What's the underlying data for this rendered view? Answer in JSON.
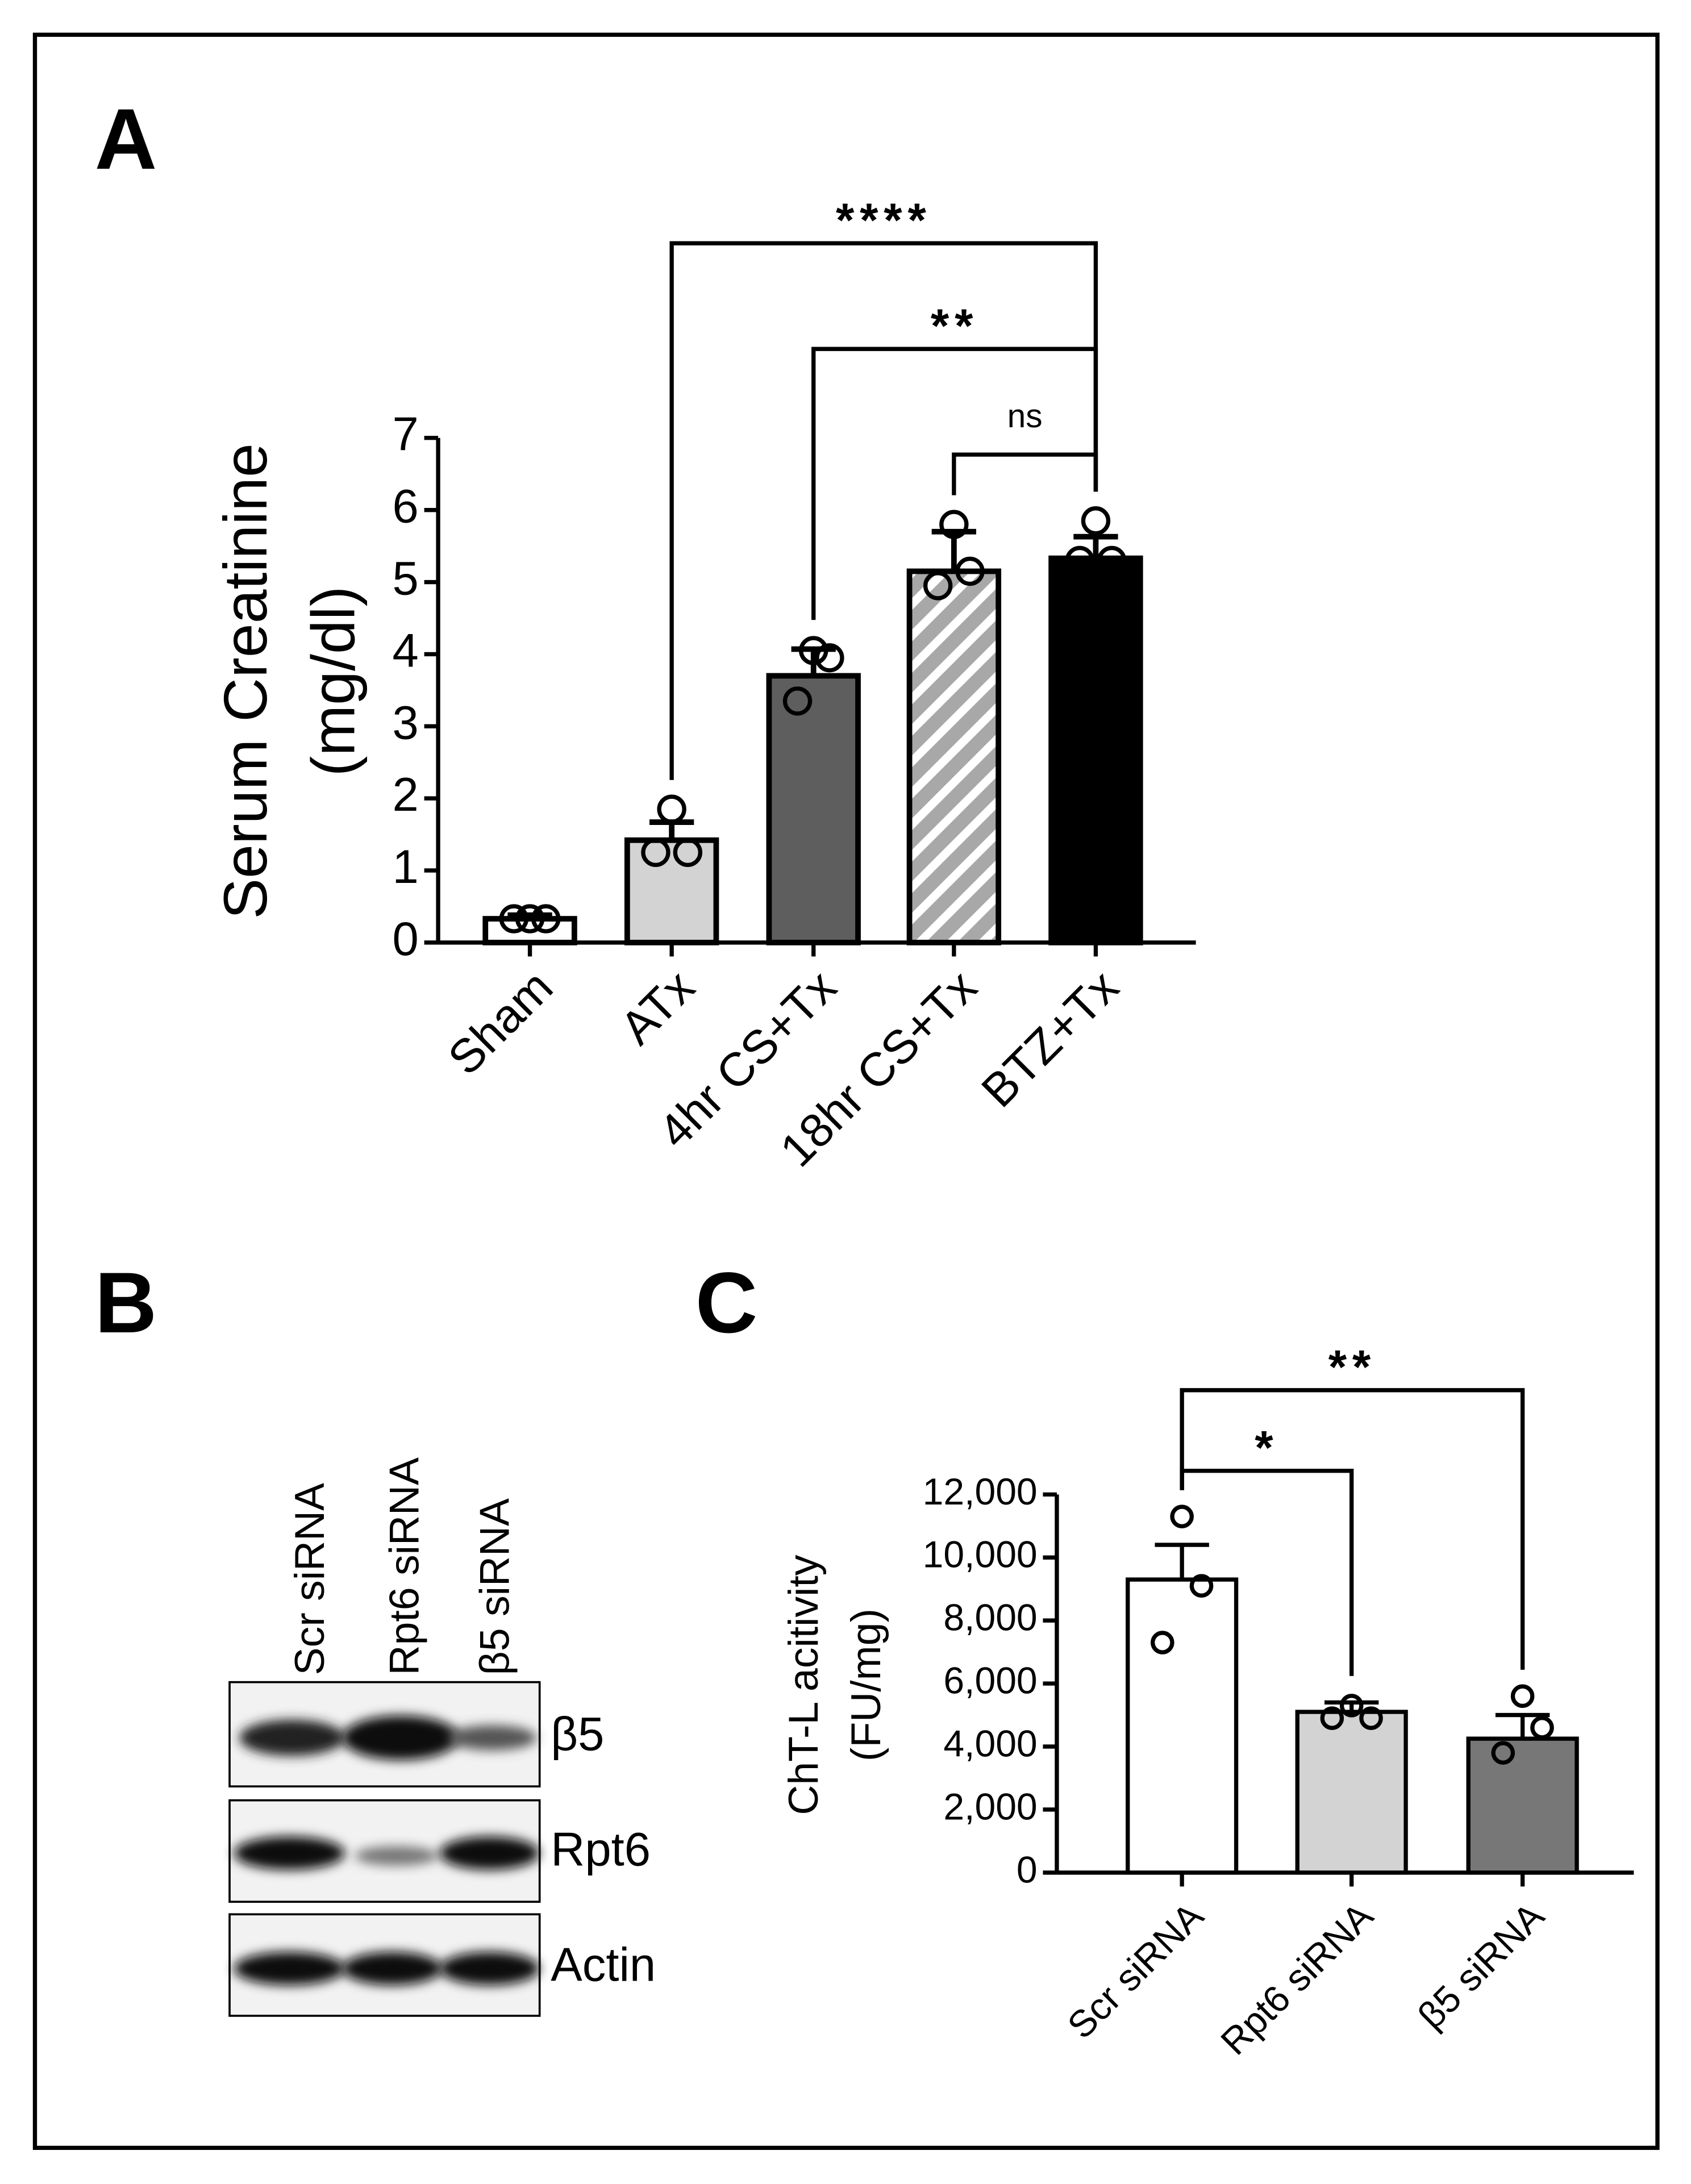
{
  "chart_data": [
    {
      "type": "bar",
      "panel": "A",
      "y_label": [
        "Serum Creatinine",
        "(mg/dl)"
      ],
      "categories": [
        "Sham",
        "ATx",
        "4hr CS+Tx",
        "18hr CS+Tx",
        "BTZ+Tx"
      ],
      "values": [
        0.33,
        1.42,
        3.7,
        5.15,
        5.33
      ],
      "errors": [
        0.05,
        0.25,
        0.37,
        0.55,
        0.3
      ],
      "points": [
        [
          0.33,
          0.33,
          0.33
        ],
        [
          1.85,
          1.25,
          1.25
        ],
        [
          4.05,
          3.95,
          3.35
        ],
        [
          5.8,
          5.15,
          4.95
        ],
        [
          5.85,
          5.3,
          5.3
        ]
      ],
      "colors": [
        "#ffffff",
        "#d3d3d3",
        "#5e5e5e",
        "#b0b0b0",
        "#000000"
      ],
      "hatch": [
        false,
        false,
        false,
        true,
        false
      ],
      "ylim": [
        0,
        7
      ],
      "yticks": [
        0,
        1,
        2,
        3,
        4,
        5,
        6,
        7
      ],
      "comparisons": [
        {
          "groups": [
            3,
            4
          ],
          "label": "ns"
        },
        {
          "groups": [
            2,
            4
          ],
          "label": "**"
        },
        {
          "groups": [
            1,
            4
          ],
          "label": "****"
        }
      ]
    },
    {
      "type": "bar",
      "panel": "C",
      "y_label": [
        "ChT-L acitivity",
        "(FU/mg)"
      ],
      "categories": [
        "Scr siRNA",
        "Rpt6 siRNA",
        "β5 siRNA"
      ],
      "values": [
        9300,
        5100,
        4250
      ],
      "errors": [
        1100,
        300,
        750
      ],
      "points": [
        [
          11300,
          9100,
          7300
        ],
        [
          5300,
          4900,
          4900
        ],
        [
          5600,
          4600,
          3800
        ]
      ],
      "colors": [
        "#ffffff",
        "#d3d3d3",
        "#777777"
      ],
      "hatch": [
        false,
        false,
        false
      ],
      "ylim": [
        0,
        12000
      ],
      "yticks": [
        0,
        {
          "value": 2000,
          "label": "2,000"
        },
        {
          "value": 4000,
          "label": "4,000"
        },
        {
          "value": 6000,
          "label": "6,000"
        },
        {
          "value": 8000,
          "label": "8,000"
        },
        {
          "value": 10000,
          "label": "10,000"
        },
        {
          "value": 12000,
          "label": "12,000"
        }
      ],
      "comparisons": [
        {
          "groups": [
            0,
            1
          ],
          "label": "*"
        },
        {
          "groups": [
            0,
            2
          ],
          "label": "**"
        }
      ]
    }
  ],
  "blot": {
    "panel": "B",
    "lanes": [
      "Scr siRNA",
      "Rpt6 siRNA",
      "β5 siRNA"
    ],
    "rows": [
      "β5",
      "Rpt6",
      "Actin"
    ]
  }
}
